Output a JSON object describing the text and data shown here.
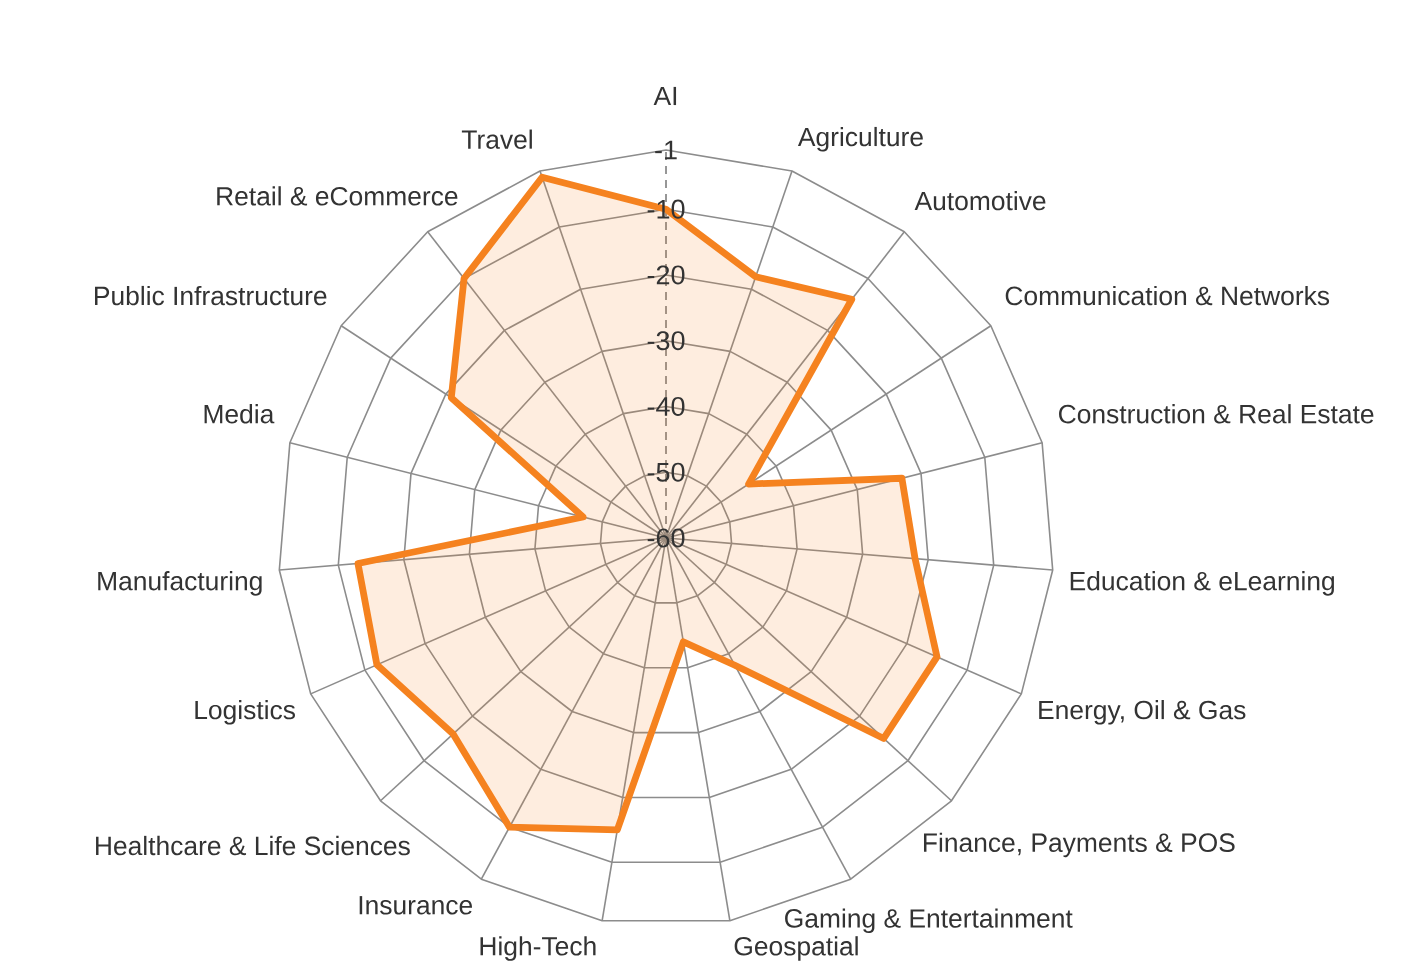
{
  "chart_data": {
    "type": "radar",
    "categories": [
      "AI",
      "Agriculture",
      "Automotive",
      "Communication & Networks",
      "Construction & Real Estate",
      "Education & eLearning",
      "Energy, Oil & Gas",
      "Finance, Payments & POS",
      "Gaming & Entertainment",
      "Geospatial",
      "High-Tech",
      "Insurance",
      "Healthcare & Life Sciences",
      "Logistics",
      "Manufacturing",
      "Media",
      "Public Infrastructure",
      "Retail & eCommerce",
      "Travel"
    ],
    "series": [
      {
        "color": "#f5821f",
        "values": [
          -10,
          -18,
          -14,
          -45,
          -23,
          -22,
          -15,
          -15,
          -38,
          -44,
          -15,
          -10,
          -16,
          -12,
          -13,
          -47,
          -21,
          -10,
          -2
        ]
      }
    ],
    "ylim": [
      -60,
      -1
    ],
    "yticks": [
      -60,
      -50,
      -40,
      -30,
      -20,
      -10,
      -1
    ],
    "grid": true
  }
}
